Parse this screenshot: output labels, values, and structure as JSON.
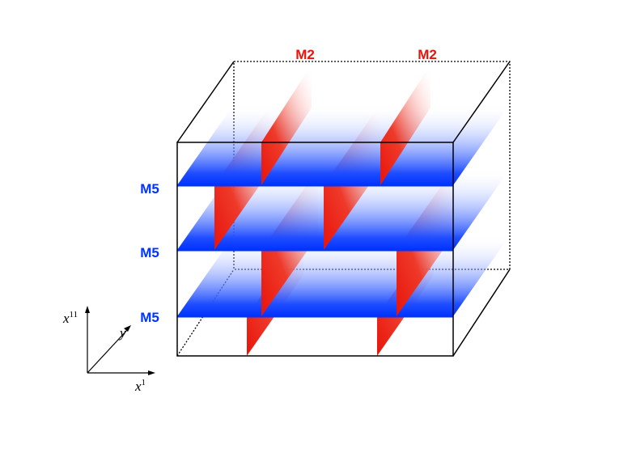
{
  "labels": {
    "m2": [
      "M2",
      "M2"
    ],
    "m5": [
      "M5",
      "M5",
      "M5"
    ]
  },
  "axes": {
    "vertical": {
      "base": "x",
      "sup": "11"
    },
    "depth": "y",
    "horizontal": {
      "base": "x",
      "sup": "1"
    }
  }
}
